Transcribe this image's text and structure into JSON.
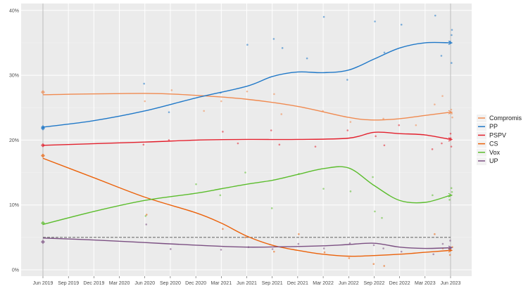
{
  "chart_data": {
    "type": "scatter",
    "title": "",
    "xlabel": "",
    "ylabel": "",
    "ylim": [
      0,
      41
    ],
    "xlim": [
      "2019-03",
      "2023-07"
    ],
    "grid": true,
    "legend_position": "right",
    "x_ticks": [
      {
        "date": "2019-06",
        "label": "Jun 2019"
      },
      {
        "date": "2019-09",
        "label": "Sep 2019"
      },
      {
        "date": "2019-12",
        "label": "Dec 2019"
      },
      {
        "date": "2020-03",
        "label": "Mar 2020"
      },
      {
        "date": "2020-06",
        "label": "Jun 2020"
      },
      {
        "date": "2020-09",
        "label": "Sep 2020"
      },
      {
        "date": "2020-12",
        "label": "Dec 2020"
      },
      {
        "date": "2021-03",
        "label": "Mar 2021"
      },
      {
        "date": "2021-06",
        "label": "Jun 2021"
      },
      {
        "date": "2021-09",
        "label": "Sep 2021"
      },
      {
        "date": "2021-12",
        "label": "Dec 2021"
      },
      {
        "date": "2022-03",
        "label": "Mar 2022"
      },
      {
        "date": "2022-06",
        "label": "Jun 2022"
      },
      {
        "date": "2022-09",
        "label": "Sep 2022"
      },
      {
        "date": "2022-12",
        "label": "Dec 2022"
      },
      {
        "date": "2023-03",
        "label": "Mar 2023"
      },
      {
        "date": "2023-06",
        "label": "Jun 2023"
      }
    ],
    "y_ticks": [
      {
        "value": 0,
        "label": "0%"
      },
      {
        "value": 10,
        "label": "10%"
      },
      {
        "value": 20,
        "label": "20%"
      },
      {
        "value": 30,
        "label": "30%"
      },
      {
        "value": 40,
        "label": "40%"
      }
    ],
    "threshold": 5,
    "vlines": [
      "2019-06",
      "2023-06"
    ],
    "series": [
      {
        "name": "Compromis",
        "color": "#f08a50",
        "election": [
          [
            "2019-06",
            27.4
          ]
        ],
        "trend": [
          [
            "2019-06",
            27
          ],
          [
            "2020-06",
            27.2
          ],
          [
            "2020-12",
            26.9
          ],
          [
            "2021-06",
            26.3
          ],
          [
            "2021-12",
            25.2
          ],
          [
            "2022-06",
            23.5
          ],
          [
            "2022-09",
            23.1
          ],
          [
            "2022-12",
            23.3
          ],
          [
            "2023-03",
            23.8
          ],
          [
            "2023-06",
            24.3
          ]
        ],
        "points": [
          [
            "2020-06",
            26
          ],
          [
            "2020-09",
            27.7
          ],
          [
            "2021-01",
            24.5
          ],
          [
            "2021-03",
            26
          ],
          [
            "2021-06",
            27.5
          ],
          [
            "2021-09",
            27.1
          ],
          [
            "2021-10",
            24
          ],
          [
            "2022-03",
            24.5
          ],
          [
            "2022-06",
            22.8
          ],
          [
            "2022-10",
            23.3
          ],
          [
            "2023-02",
            22.3
          ],
          [
            "2023-04",
            25.5
          ],
          [
            "2023-05",
            26.8
          ],
          [
            "2023-06",
            24.7
          ],
          [
            "2023-06",
            23.5
          ],
          [
            "2023-06",
            24.1
          ]
        ]
      },
      {
        "name": "PP",
        "color": "#1f78c8",
        "election": [
          [
            "2019-06",
            21.8
          ],
          [
            "2019-06",
            22
          ]
        ],
        "trend": [
          [
            "2019-06",
            22
          ],
          [
            "2019-12",
            23
          ],
          [
            "2020-06",
            24.5
          ],
          [
            "2020-12",
            26.5
          ],
          [
            "2021-06",
            28.3
          ],
          [
            "2021-09",
            29.8
          ],
          [
            "2021-12",
            30.5
          ],
          [
            "2022-03",
            30.4
          ],
          [
            "2022-06",
            30.8
          ],
          [
            "2022-09",
            32.5
          ],
          [
            "2022-12",
            34.2
          ],
          [
            "2023-03",
            35
          ],
          [
            "2023-06",
            35
          ]
        ],
        "points": [
          [
            "2020-06",
            28.7
          ],
          [
            "2020-09",
            24.3
          ],
          [
            "2021-03",
            27.3
          ],
          [
            "2021-06",
            34.7
          ],
          [
            "2021-09",
            35.6
          ],
          [
            "2021-10",
            34.2
          ],
          [
            "2022-01",
            32.6
          ],
          [
            "2022-03",
            39
          ],
          [
            "2022-06",
            29.3
          ],
          [
            "2022-09",
            38.3
          ],
          [
            "2022-10",
            33.5
          ],
          [
            "2022-12",
            37.8
          ],
          [
            "2023-04",
            39.2
          ],
          [
            "2023-05",
            33
          ],
          [
            "2023-06",
            36.2
          ],
          [
            "2023-06",
            31.9
          ],
          [
            "2023-06",
            35.2
          ],
          [
            "2023-06",
            37
          ]
        ]
      },
      {
        "name": "PSPV",
        "color": "#e3202d",
        "election": [
          [
            "2019-06",
            19.2
          ]
        ],
        "trend": [
          [
            "2019-06",
            19.2
          ],
          [
            "2020-06",
            19.7
          ],
          [
            "2020-12",
            20
          ],
          [
            "2021-06",
            20.1
          ],
          [
            "2021-12",
            20.1
          ],
          [
            "2022-06",
            20.3
          ],
          [
            "2022-09",
            21.2
          ],
          [
            "2022-12",
            21
          ],
          [
            "2023-03",
            20.8
          ],
          [
            "2023-06",
            20.1
          ]
        ],
        "points": [
          [
            "2020-06",
            19.3
          ],
          [
            "2020-09",
            20
          ],
          [
            "2021-03",
            21.3
          ],
          [
            "2021-05",
            19.5
          ],
          [
            "2021-09",
            21.5
          ],
          [
            "2021-10",
            19.3
          ],
          [
            "2022-02",
            19
          ],
          [
            "2022-06",
            21.5
          ],
          [
            "2022-09",
            20.6
          ],
          [
            "2022-10",
            19.2
          ],
          [
            "2022-12",
            22.3
          ],
          [
            "2023-04",
            18.6
          ],
          [
            "2023-05",
            19.5
          ],
          [
            "2023-06",
            21
          ],
          [
            "2023-06",
            19
          ],
          [
            "2023-06",
            20.3
          ]
        ]
      },
      {
        "name": "CS",
        "color": "#eb6109",
        "election": [
          [
            "2019-06",
            17.6
          ]
        ],
        "trend": [
          [
            "2019-06",
            17.2
          ],
          [
            "2019-12",
            14.2
          ],
          [
            "2020-06",
            11.2
          ],
          [
            "2020-12",
            8.8
          ],
          [
            "2021-03",
            7.2
          ],
          [
            "2021-06",
            5.2
          ],
          [
            "2021-09",
            3.8
          ],
          [
            "2021-12",
            3
          ],
          [
            "2022-03",
            2.4
          ],
          [
            "2022-06",
            2.1
          ],
          [
            "2022-09",
            2.2
          ],
          [
            "2022-12",
            2.4
          ],
          [
            "2023-03",
            2.7
          ],
          [
            "2023-06",
            3
          ]
        ],
        "points": [
          [
            "2020-06",
            8.5
          ],
          [
            "2021-03",
            6.3
          ],
          [
            "2021-06",
            5
          ],
          [
            "2021-09",
            2.8
          ],
          [
            "2021-12",
            5.5
          ],
          [
            "2022-03",
            2.7
          ],
          [
            "2022-06",
            1.8
          ],
          [
            "2022-09",
            0.9
          ],
          [
            "2022-10",
            0.6
          ],
          [
            "2023-04",
            5.5
          ],
          [
            "2023-05",
            3.3
          ],
          [
            "2023-06",
            2.3
          ],
          [
            "2023-06",
            3.5
          ]
        ]
      },
      {
        "name": "Vox",
        "color": "#5bbd2c",
        "election": [
          [
            "2019-06",
            7.2
          ]
        ],
        "trend": [
          [
            "2019-06",
            7
          ],
          [
            "2019-12",
            9
          ],
          [
            "2020-06",
            10.7
          ],
          [
            "2020-12",
            11.8
          ],
          [
            "2021-03",
            12.5
          ],
          [
            "2021-06",
            13.2
          ],
          [
            "2021-09",
            13.8
          ],
          [
            "2021-12",
            14.7
          ],
          [
            "2022-03",
            15.6
          ],
          [
            "2022-06",
            15.7
          ],
          [
            "2022-09",
            13
          ],
          [
            "2022-12",
            10.7
          ],
          [
            "2023-03",
            10.4
          ],
          [
            "2023-06",
            11.5
          ]
        ],
        "points": [
          [
            "2020-06",
            8.3
          ],
          [
            "2020-12",
            13.2
          ],
          [
            "2021-03",
            11.5
          ],
          [
            "2021-06",
            15
          ],
          [
            "2021-09",
            9.5
          ],
          [
            "2021-12",
            14.8
          ],
          [
            "2022-03",
            12.5
          ],
          [
            "2022-06",
            12.1
          ],
          [
            "2022-09",
            14.3
          ],
          [
            "2022-09",
            9
          ],
          [
            "2022-10",
            8
          ],
          [
            "2023-04",
            11.5
          ],
          [
            "2023-06",
            12.6
          ],
          [
            "2023-06",
            10.8
          ],
          [
            "2023-06",
            12
          ]
        ]
      },
      {
        "name": "UP",
        "color": "#7b4f82",
        "election": [
          [
            "2019-06",
            4.3
          ]
        ],
        "trend": [
          [
            "2019-06",
            4.9
          ],
          [
            "2019-12",
            4.6
          ],
          [
            "2020-06",
            4.2
          ],
          [
            "2020-12",
            3.8
          ],
          [
            "2021-06",
            3.5
          ],
          [
            "2021-12",
            3.6
          ],
          [
            "2022-03",
            3.7
          ],
          [
            "2022-06",
            3.9
          ],
          [
            "2022-09",
            4.1
          ],
          [
            "2022-12",
            3.5
          ],
          [
            "2023-03",
            3.3
          ],
          [
            "2023-06",
            3.4
          ]
        ],
        "points": [
          [
            "2020-06",
            7
          ],
          [
            "2020-09",
            3.2
          ],
          [
            "2021-03",
            3.1
          ],
          [
            "2021-06",
            3.5
          ],
          [
            "2021-09",
            3.2
          ],
          [
            "2021-12",
            4
          ],
          [
            "2022-03",
            3.3
          ],
          [
            "2022-06",
            4.1
          ],
          [
            "2022-09",
            3.8
          ],
          [
            "2022-10",
            3.3
          ],
          [
            "2022-12",
            2.8
          ],
          [
            "2023-04",
            2.4
          ],
          [
            "2023-05",
            4
          ],
          [
            "2023-06",
            3.1
          ],
          [
            "2023-06",
            4.5
          ]
        ]
      }
    ]
  }
}
